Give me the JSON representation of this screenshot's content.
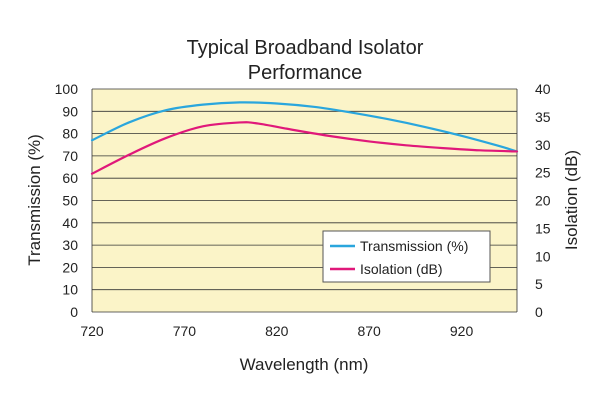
{
  "colors": {
    "plot_background": "#fbf4c8",
    "grid": "#333333",
    "transmission": "#2aa6dd",
    "isolation": "#e0187a"
  },
  "chart_data": {
    "type": "line",
    "title": [
      "Typical Broadband Isolator",
      "Performance"
    ],
    "xlabel": "Wavelength (nm)",
    "ylabel_left": "Transmission (%)",
    "ylabel_right": "Isolation (dB)",
    "xlim": [
      720,
      950
    ],
    "ylim_left": [
      0,
      100
    ],
    "ylim_right": [
      0,
      40
    ],
    "x_ticks": [
      720,
      770,
      820,
      870,
      920
    ],
    "y_ticks_left": [
      0,
      10,
      20,
      30,
      40,
      50,
      60,
      70,
      80,
      90,
      100
    ],
    "y_ticks_right": [
      0,
      5,
      10,
      15,
      20,
      25,
      30,
      35,
      40
    ],
    "grid": "horizontal",
    "legend_position": "bottom-right",
    "series": [
      {
        "name": "Transmission (%)",
        "axis": "left",
        "color": "#2aa6dd",
        "x": [
          720,
          740,
          760,
          780,
          800,
          820,
          840,
          860,
          880,
          900,
          920,
          940,
          950
        ],
        "y": [
          77,
          85,
          90.5,
          93,
          94,
          93.5,
          92,
          89.5,
          86.5,
          83,
          79,
          74.5,
          72
        ]
      },
      {
        "name": "Isolation (dB)",
        "axis": "right",
        "color": "#e0187a",
        "x": [
          720,
          740,
          760,
          780,
          800,
          810,
          830,
          850,
          870,
          890,
          910,
          930,
          950
        ],
        "y": [
          24.8,
          28.2,
          31.2,
          33.3,
          34,
          33.8,
          32.6,
          31.5,
          30.6,
          29.9,
          29.4,
          29.0,
          28.8
        ]
      }
    ]
  }
}
